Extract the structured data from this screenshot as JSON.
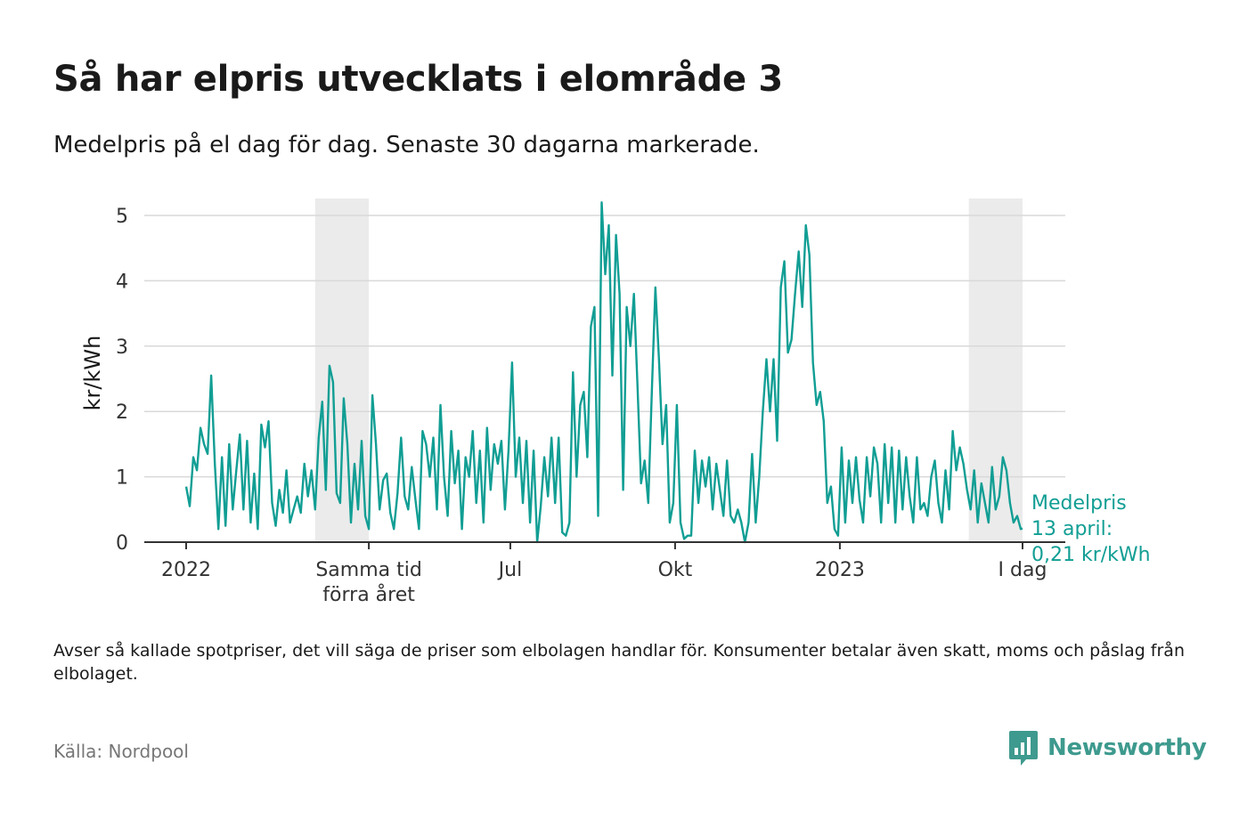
{
  "title": "Så har elpris utvecklats i elområde 3",
  "subtitle": "Medelpris på el dag för dag.  Senaste 30 dagarna markerade.",
  "note": "Avser så kallade spotpriser, det vill säga de priser som elbolagen handlar för. Konsumenter betalar även skatt, moms och påslag från elbolaget.",
  "source": "Källa: Nordpool",
  "logo": {
    "name": "Newsworthy",
    "icon": "newsworthy-logo-icon"
  },
  "colors": {
    "line": "#119e94",
    "highlight": "#ebebeb",
    "grid": "#d9d9d9",
    "axis": "#333333",
    "logo": "#3e9a8e"
  },
  "chart_data": {
    "type": "line",
    "ylabel": "kr/kWh",
    "ylim": [
      0,
      5.3
    ],
    "yticks": [
      0,
      1,
      2,
      3,
      4,
      5
    ],
    "xlim": [
      "2022-01-01",
      "2023-04-13"
    ],
    "xticks": [
      {
        "date": "2022-01-01",
        "label": "2022"
      },
      {
        "date": "2022-04-13",
        "label": "Samma tid förra året"
      },
      {
        "date": "2022-07-01",
        "label": "Jul"
      },
      {
        "date": "2022-10-01",
        "label": "Okt"
      },
      {
        "date": "2023-01-01",
        "label": "2023"
      },
      {
        "date": "2023-04-13",
        "label": "I dag"
      }
    ],
    "highlight_ranges": [
      {
        "from": "2022-03-14",
        "to": "2022-04-13"
      },
      {
        "from": "2023-03-14",
        "to": "2023-04-13"
      }
    ],
    "annotation": {
      "label": "Medelpris 13 april: 0,21 kr/kWh",
      "date": "2023-04-13",
      "value": 0.21
    },
    "series": [
      {
        "points": [
          [
            "2022-01-01",
            0.85
          ],
          [
            "2022-01-03",
            0.55
          ],
          [
            "2022-01-05",
            1.3
          ],
          [
            "2022-01-07",
            1.1
          ],
          [
            "2022-01-09",
            1.75
          ],
          [
            "2022-01-11",
            1.5
          ],
          [
            "2022-01-13",
            1.35
          ],
          [
            "2022-01-15",
            2.55
          ],
          [
            "2022-01-17",
            1.2
          ],
          [
            "2022-01-19",
            0.2
          ],
          [
            "2022-01-21",
            1.3
          ],
          [
            "2022-01-23",
            0.25
          ],
          [
            "2022-01-25",
            1.5
          ],
          [
            "2022-01-27",
            0.5
          ],
          [
            "2022-01-29",
            1.1
          ],
          [
            "2022-01-31",
            1.65
          ],
          [
            "2022-02-02",
            0.5
          ],
          [
            "2022-02-04",
            1.55
          ],
          [
            "2022-02-06",
            0.3
          ],
          [
            "2022-02-08",
            1.05
          ],
          [
            "2022-02-10",
            0.2
          ],
          [
            "2022-02-12",
            1.8
          ],
          [
            "2022-02-14",
            1.45
          ],
          [
            "2022-02-16",
            1.85
          ],
          [
            "2022-02-18",
            0.6
          ],
          [
            "2022-02-20",
            0.25
          ],
          [
            "2022-02-22",
            0.8
          ],
          [
            "2022-02-24",
            0.45
          ],
          [
            "2022-02-26",
            1.1
          ],
          [
            "2022-02-28",
            0.3
          ],
          [
            "2022-03-02",
            0.5
          ],
          [
            "2022-03-04",
            0.7
          ],
          [
            "2022-03-06",
            0.45
          ],
          [
            "2022-03-08",
            1.2
          ],
          [
            "2022-03-10",
            0.7
          ],
          [
            "2022-03-12",
            1.1
          ],
          [
            "2022-03-14",
            0.5
          ],
          [
            "2022-03-16",
            1.6
          ],
          [
            "2022-03-18",
            2.15
          ],
          [
            "2022-03-20",
            0.8
          ],
          [
            "2022-03-22",
            2.7
          ],
          [
            "2022-03-24",
            2.45
          ],
          [
            "2022-03-26",
            0.75
          ],
          [
            "2022-03-28",
            0.6
          ],
          [
            "2022-03-30",
            2.2
          ],
          [
            "2022-04-01",
            1.5
          ],
          [
            "2022-04-03",
            0.3
          ],
          [
            "2022-04-05",
            1.2
          ],
          [
            "2022-04-07",
            0.5
          ],
          [
            "2022-04-09",
            1.55
          ],
          [
            "2022-04-11",
            0.4
          ],
          [
            "2022-04-13",
            0.2
          ],
          [
            "2022-04-15",
            2.25
          ],
          [
            "2022-04-17",
            1.5
          ],
          [
            "2022-04-19",
            0.5
          ],
          [
            "2022-04-21",
            0.95
          ],
          [
            "2022-04-23",
            1.05
          ],
          [
            "2022-04-25",
            0.45
          ],
          [
            "2022-04-27",
            0.2
          ],
          [
            "2022-04-29",
            0.75
          ],
          [
            "2022-05-01",
            1.6
          ],
          [
            "2022-05-03",
            0.7
          ],
          [
            "2022-05-05",
            0.5
          ],
          [
            "2022-05-07",
            1.15
          ],
          [
            "2022-05-09",
            0.65
          ],
          [
            "2022-05-11",
            0.2
          ],
          [
            "2022-05-13",
            1.7
          ],
          [
            "2022-05-15",
            1.5
          ],
          [
            "2022-05-17",
            1.0
          ],
          [
            "2022-05-19",
            1.6
          ],
          [
            "2022-05-21",
            0.5
          ],
          [
            "2022-05-23",
            2.1
          ],
          [
            "2022-05-25",
            1.0
          ],
          [
            "2022-05-27",
            0.4
          ],
          [
            "2022-05-29",
            1.7
          ],
          [
            "2022-05-31",
            0.9
          ],
          [
            "2022-06-02",
            1.4
          ],
          [
            "2022-06-04",
            0.2
          ],
          [
            "2022-06-06",
            1.3
          ],
          [
            "2022-06-08",
            1.0
          ],
          [
            "2022-06-10",
            1.7
          ],
          [
            "2022-06-12",
            0.6
          ],
          [
            "2022-06-14",
            1.4
          ],
          [
            "2022-06-16",
            0.3
          ],
          [
            "2022-06-18",
            1.75
          ],
          [
            "2022-06-20",
            0.8
          ],
          [
            "2022-06-22",
            1.5
          ],
          [
            "2022-06-24",
            1.2
          ],
          [
            "2022-06-26",
            1.55
          ],
          [
            "2022-06-28",
            0.5
          ],
          [
            "2022-06-30",
            1.4
          ],
          [
            "2022-07-02",
            2.75
          ],
          [
            "2022-07-04",
            1.0
          ],
          [
            "2022-07-06",
            1.6
          ],
          [
            "2022-07-08",
            0.6
          ],
          [
            "2022-07-10",
            1.55
          ],
          [
            "2022-07-12",
            0.3
          ],
          [
            "2022-07-14",
            1.4
          ],
          [
            "2022-07-16",
            0.0
          ],
          [
            "2022-07-18",
            0.55
          ],
          [
            "2022-07-20",
            1.3
          ],
          [
            "2022-07-22",
            0.7
          ],
          [
            "2022-07-24",
            1.6
          ],
          [
            "2022-07-26",
            0.6
          ],
          [
            "2022-07-28",
            1.6
          ],
          [
            "2022-07-30",
            0.15
          ],
          [
            "2022-08-01",
            0.1
          ],
          [
            "2022-08-03",
            0.3
          ],
          [
            "2022-08-05",
            2.6
          ],
          [
            "2022-08-07",
            1.0
          ],
          [
            "2022-08-09",
            2.1
          ],
          [
            "2022-08-11",
            2.3
          ],
          [
            "2022-08-13",
            1.3
          ],
          [
            "2022-08-15",
            3.3
          ],
          [
            "2022-08-17",
            3.6
          ],
          [
            "2022-08-19",
            0.4
          ],
          [
            "2022-08-21",
            5.2
          ],
          [
            "2022-08-23",
            4.1
          ],
          [
            "2022-08-25",
            4.85
          ],
          [
            "2022-08-27",
            2.55
          ],
          [
            "2022-08-29",
            4.7
          ],
          [
            "2022-08-31",
            3.8
          ],
          [
            "2022-09-02",
            0.8
          ],
          [
            "2022-09-04",
            3.6
          ],
          [
            "2022-09-06",
            3.0
          ],
          [
            "2022-09-08",
            3.8
          ],
          [
            "2022-09-10",
            2.4
          ],
          [
            "2022-09-12",
            0.9
          ],
          [
            "2022-09-14",
            1.25
          ],
          [
            "2022-09-16",
            0.6
          ],
          [
            "2022-09-18",
            2.3
          ],
          [
            "2022-09-20",
            3.9
          ],
          [
            "2022-09-22",
            2.8
          ],
          [
            "2022-09-24",
            1.5
          ],
          [
            "2022-09-26",
            2.1
          ],
          [
            "2022-09-28",
            0.3
          ],
          [
            "2022-09-30",
            0.6
          ],
          [
            "2022-10-02",
            2.1
          ],
          [
            "2022-10-04",
            0.3
          ],
          [
            "2022-10-06",
            0.05
          ],
          [
            "2022-10-08",
            0.1
          ],
          [
            "2022-10-10",
            0.1
          ],
          [
            "2022-10-12",
            1.4
          ],
          [
            "2022-10-14",
            0.6
          ],
          [
            "2022-10-16",
            1.25
          ],
          [
            "2022-10-18",
            0.85
          ],
          [
            "2022-10-20",
            1.3
          ],
          [
            "2022-10-22",
            0.5
          ],
          [
            "2022-10-24",
            1.2
          ],
          [
            "2022-10-26",
            0.8
          ],
          [
            "2022-10-28",
            0.4
          ],
          [
            "2022-10-30",
            1.25
          ],
          [
            "2022-11-01",
            0.4
          ],
          [
            "2022-11-03",
            0.3
          ],
          [
            "2022-11-05",
            0.5
          ],
          [
            "2022-11-07",
            0.3
          ],
          [
            "2022-11-09",
            0.0
          ],
          [
            "2022-11-11",
            0.3
          ],
          [
            "2022-11-13",
            1.35
          ],
          [
            "2022-11-15",
            0.3
          ],
          [
            "2022-11-17",
            1.0
          ],
          [
            "2022-11-19",
            2.0
          ],
          [
            "2022-11-21",
            2.8
          ],
          [
            "2022-11-23",
            2.0
          ],
          [
            "2022-11-25",
            2.8
          ],
          [
            "2022-11-27",
            1.55
          ],
          [
            "2022-11-29",
            3.9
          ],
          [
            "2022-12-01",
            4.3
          ],
          [
            "2022-12-03",
            2.9
          ],
          [
            "2022-12-05",
            3.1
          ],
          [
            "2022-12-07",
            3.8
          ],
          [
            "2022-12-09",
            4.45
          ],
          [
            "2022-12-11",
            3.6
          ],
          [
            "2022-12-13",
            4.85
          ],
          [
            "2022-12-15",
            4.4
          ],
          [
            "2022-12-17",
            2.75
          ],
          [
            "2022-12-19",
            2.1
          ],
          [
            "2022-12-21",
            2.3
          ],
          [
            "2022-12-23",
            1.85
          ],
          [
            "2022-12-25",
            0.6
          ],
          [
            "2022-12-27",
            0.85
          ],
          [
            "2022-12-29",
            0.2
          ],
          [
            "2022-12-31",
            0.1
          ],
          [
            "2023-01-02",
            1.45
          ],
          [
            "2023-01-04",
            0.3
          ],
          [
            "2023-01-06",
            1.25
          ],
          [
            "2023-01-08",
            0.6
          ],
          [
            "2023-01-10",
            1.3
          ],
          [
            "2023-01-12",
            0.65
          ],
          [
            "2023-01-14",
            0.3
          ],
          [
            "2023-01-16",
            1.3
          ],
          [
            "2023-01-18",
            0.7
          ],
          [
            "2023-01-20",
            1.45
          ],
          [
            "2023-01-22",
            1.2
          ],
          [
            "2023-01-24",
            0.3
          ],
          [
            "2023-01-26",
            1.5
          ],
          [
            "2023-01-28",
            0.6
          ],
          [
            "2023-01-30",
            1.45
          ],
          [
            "2023-02-01",
            0.3
          ],
          [
            "2023-02-03",
            1.4
          ],
          [
            "2023-02-05",
            0.5
          ],
          [
            "2023-02-07",
            1.3
          ],
          [
            "2023-02-09",
            0.7
          ],
          [
            "2023-02-11",
            0.3
          ],
          [
            "2023-02-13",
            1.3
          ],
          [
            "2023-02-15",
            0.5
          ],
          [
            "2023-02-17",
            0.6
          ],
          [
            "2023-02-19",
            0.4
          ],
          [
            "2023-02-21",
            1.0
          ],
          [
            "2023-02-23",
            1.25
          ],
          [
            "2023-02-25",
            0.6
          ],
          [
            "2023-02-27",
            0.3
          ],
          [
            "2023-03-01",
            1.1
          ],
          [
            "2023-03-03",
            0.5
          ],
          [
            "2023-03-05",
            1.7
          ],
          [
            "2023-03-07",
            1.1
          ],
          [
            "2023-03-09",
            1.45
          ],
          [
            "2023-03-11",
            1.2
          ],
          [
            "2023-03-13",
            0.8
          ],
          [
            "2023-03-15",
            0.5
          ],
          [
            "2023-03-17",
            1.1
          ],
          [
            "2023-03-19",
            0.3
          ],
          [
            "2023-03-21",
            0.9
          ],
          [
            "2023-03-23",
            0.6
          ],
          [
            "2023-03-25",
            0.3
          ],
          [
            "2023-03-27",
            1.15
          ],
          [
            "2023-03-29",
            0.5
          ],
          [
            "2023-03-31",
            0.7
          ],
          [
            "2023-04-02",
            1.3
          ],
          [
            "2023-04-04",
            1.1
          ],
          [
            "2023-04-06",
            0.6
          ],
          [
            "2023-04-08",
            0.3
          ],
          [
            "2023-04-10",
            0.4
          ],
          [
            "2023-04-12",
            0.2
          ],
          [
            "2023-04-13",
            0.21
          ]
        ]
      }
    ]
  }
}
